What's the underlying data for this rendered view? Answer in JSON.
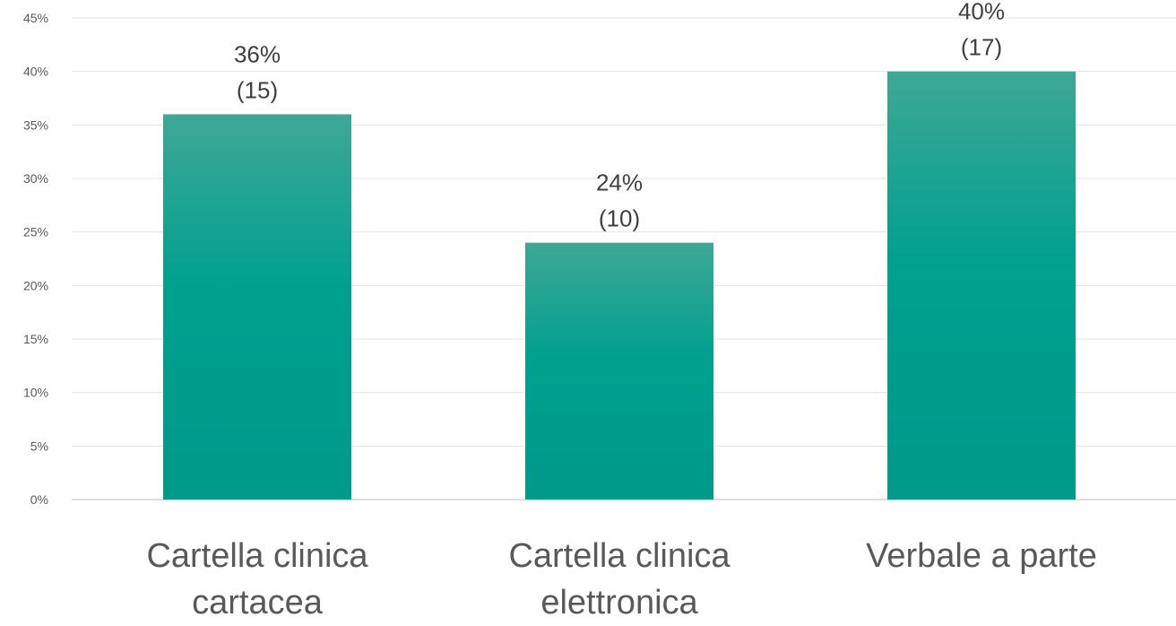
{
  "chart_data": {
    "type": "bar",
    "categories": [
      [
        "Cartella clinica",
        "cartacea"
      ],
      [
        "Cartella clinica",
        "elettronica"
      ],
      [
        "Verbale a parte"
      ]
    ],
    "values": [
      36,
      24,
      40
    ],
    "counts": [
      15,
      10,
      17
    ],
    "data_labels": [
      [
        "36%",
        "(15)"
      ],
      [
        "24%",
        "(10)"
      ],
      [
        "40%",
        "(17)"
      ]
    ],
    "ylim": [
      0,
      45
    ],
    "ytick_labels": [
      "0%",
      "5%",
      "10%",
      "15%",
      "20%",
      "25%",
      "30%",
      "35%",
      "40%",
      "45%"
    ],
    "title": "",
    "xlabel": "",
    "ylabel": "",
    "grid": true,
    "bar_color_top": "#3fa796",
    "bar_color_bottom": "#00998a"
  }
}
